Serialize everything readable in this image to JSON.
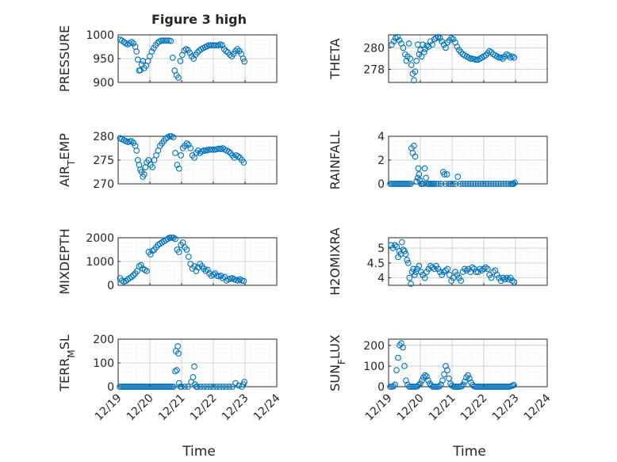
{
  "figure": {
    "title": "Figure 3 high",
    "marker_color": "#0072BD",
    "grid_color": "#C8C8C8",
    "axis_color": "#262626"
  },
  "chart_data": [
    {
      "type": "scatter",
      "ylabel": "PRESSURE",
      "ylim": [
        900,
        1000
      ],
      "yticks": [
        900,
        950,
        1000
      ],
      "xlim": [
        0,
        5
      ],
      "grid": true,
      "x": [
        0.07,
        0.12,
        0.18,
        0.24,
        0.3,
        0.36,
        0.42,
        0.48,
        0.54,
        0.58,
        0.62,
        0.66,
        0.7,
        0.74,
        0.78,
        0.82,
        0.88,
        0.94,
        1.0,
        1.06,
        1.12,
        1.18,
        1.24,
        1.3,
        1.36,
        1.42,
        1.48,
        1.54,
        1.6,
        1.66,
        1.72,
        1.78,
        1.84,
        1.9,
        1.96,
        2.02,
        2.08,
        2.14,
        2.2,
        2.26,
        2.32,
        2.38,
        2.44,
        2.5,
        2.56,
        2.62,
        2.68,
        2.74,
        2.8,
        2.86,
        2.92,
        2.98,
        3.04,
        3.1,
        3.16,
        3.22,
        3.28,
        3.34,
        3.4,
        3.46,
        3.52,
        3.58,
        3.64,
        3.7,
        3.76,
        3.82,
        3.88,
        3.94,
        3.98
      ],
      "values": [
        990,
        988,
        985,
        982,
        980,
        982,
        985,
        982,
        975,
        965,
        948,
        925,
        926,
        938,
        945,
        930,
        935,
        945,
        955,
        965,
        972,
        978,
        983,
        986,
        988,
        988,
        988,
        988,
        988,
        987,
        952,
        925,
        915,
        910,
        945,
        958,
        967,
        970,
        968,
        962,
        955,
        950,
        958,
        963,
        967,
        970,
        972,
        974,
        976,
        978,
        978,
        978,
        978,
        978,
        978,
        980,
        978,
        970,
        966,
        963,
        958,
        955,
        960,
        966,
        970,
        966,
        960,
        950,
        944
      ]
    },
    {
      "type": "scatter",
      "ylabel": "THETA",
      "ylim": [
        276.8,
        281.2
      ],
      "yticks": [
        278,
        280
      ],
      "xlim": [
        0,
        5
      ],
      "grid": true,
      "x": [
        0.1,
        0.16,
        0.22,
        0.28,
        0.34,
        0.4,
        0.46,
        0.52,
        0.56,
        0.6,
        0.64,
        0.68,
        0.72,
        0.76,
        0.8,
        0.84,
        0.88,
        0.92,
        0.96,
        1.0,
        1.04,
        1.08,
        1.12,
        1.16,
        1.2,
        1.26,
        1.32,
        1.38,
        1.44,
        1.5,
        1.56,
        1.62,
        1.68,
        1.74,
        1.8,
        1.86,
        1.92,
        1.98,
        2.04,
        2.1,
        2.16,
        2.22,
        2.28,
        2.34,
        2.4,
        2.46,
        2.52,
        2.58,
        2.64,
        2.7,
        2.76,
        2.82,
        2.88,
        2.94,
        3.0,
        3.06,
        3.12,
        3.18,
        3.24,
        3.3,
        3.36,
        3.42,
        3.48,
        3.54,
        3.6,
        3.66,
        3.72,
        3.78,
        3.84,
        3.9,
        3.96
      ],
      "values": [
        280.3,
        280.6,
        280.9,
        281.0,
        280.7,
        280.4,
        280.0,
        279.4,
        278.8,
        279.2,
        280.4,
        279.0,
        278.4,
        277.6,
        277.0,
        277.8,
        278.8,
        280.3,
        279.4,
        279.8,
        279.2,
        280.3,
        279.6,
        279.9,
        280.2,
        280.1,
        280.6,
        280.3,
        280.8,
        280.9,
        281.0,
        280.9,
        280.6,
        280.3,
        280.0,
        280.5,
        280.7,
        280.9,
        280.8,
        280.5,
        280.1,
        279.8,
        279.6,
        279.4,
        279.3,
        279.2,
        279.1,
        279.0,
        279.0,
        278.95,
        278.9,
        278.9,
        279.0,
        279.1,
        279.2,
        279.3,
        279.5,
        279.7,
        279.6,
        279.4,
        279.3,
        279.2,
        279.1,
        279.1,
        279.0,
        279.2,
        279.4,
        279.3,
        279.1,
        279.2,
        279.1
      ]
    },
    {
      "type": "scatter",
      "ylabel": "AIR_TEMP",
      "ylim": [
        270,
        280
      ],
      "yticks": [
        270,
        275,
        280
      ],
      "xlim": [
        0,
        5
      ],
      "grid": true,
      "x": [
        0.06,
        0.12,
        0.18,
        0.24,
        0.3,
        0.36,
        0.42,
        0.48,
        0.54,
        0.58,
        0.62,
        0.66,
        0.7,
        0.74,
        0.78,
        0.82,
        0.86,
        0.9,
        0.96,
        1.02,
        1.08,
        1.14,
        1.2,
        1.26,
        1.32,
        1.38,
        1.44,
        1.5,
        1.56,
        1.62,
        1.68,
        1.74,
        1.8,
        1.86,
        1.92,
        1.98,
        2.04,
        2.1,
        2.16,
        2.22,
        2.28,
        2.34,
        2.4,
        2.46,
        2.52,
        2.58,
        2.64,
        2.7,
        2.76,
        2.82,
        2.88,
        2.94,
        3.0,
        3.06,
        3.12,
        3.18,
        3.24,
        3.3,
        3.36,
        3.42,
        3.48,
        3.54,
        3.6,
        3.66,
        3.72,
        3.78,
        3.84,
        3.9,
        3.96
      ],
      "values": [
        279.6,
        279.4,
        279.2,
        279.0,
        278.8,
        278.9,
        279.0,
        278.6,
        278.0,
        277.0,
        275.0,
        274.0,
        273.0,
        272.5,
        271.5,
        272.0,
        273.5,
        274.5,
        275.0,
        274.0,
        273.5,
        275.0,
        276.0,
        277.0,
        278.0,
        278.5,
        279.0,
        279.5,
        279.8,
        280.0,
        280.0,
        279.8,
        276.5,
        274.0,
        273.2,
        276.0,
        277.5,
        278.0,
        278.5,
        278.2,
        277.5,
        276.0,
        275.5,
        276.5,
        277.0,
        276.5,
        276.8,
        277.0,
        277.0,
        277.1,
        277.2,
        277.2,
        277.2,
        277.2,
        277.3,
        277.4,
        277.3,
        277.5,
        277.2,
        277.0,
        276.8,
        276.5,
        276.0,
        275.5,
        276.0,
        275.8,
        275.5,
        275.0,
        274.5
      ]
    },
    {
      "type": "scatter",
      "ylabel": "RAINFALL",
      "ylim": [
        0,
        4
      ],
      "yticks": [
        0,
        2,
        4
      ],
      "xlim": [
        0,
        5
      ],
      "grid": true,
      "x": [
        0.05,
        0.1,
        0.15,
        0.2,
        0.25,
        0.3,
        0.35,
        0.4,
        0.45,
        0.5,
        0.55,
        0.6,
        0.65,
        0.7,
        0.72,
        0.76,
        0.8,
        0.84,
        0.88,
        0.92,
        0.94,
        0.96,
        0.98,
        1.02,
        1.06,
        1.1,
        1.14,
        1.18,
        1.22,
        1.26,
        1.3,
        1.34,
        1.38,
        1.42,
        1.5,
        1.58,
        1.66,
        1.72,
        1.76,
        1.8,
        1.84,
        1.9,
        1.96,
        2.02,
        2.1,
        2.18,
        2.26,
        2.34,
        2.42,
        2.5,
        2.58,
        2.66,
        2.74,
        2.82,
        2.9,
        2.98,
        3.06,
        3.14,
        3.22,
        3.3,
        3.38,
        3.46,
        3.54,
        3.62,
        3.7,
        3.78,
        3.86,
        3.9,
        3.94,
        3.98
      ],
      "values": [
        0,
        0,
        0,
        0,
        0,
        0,
        0,
        0,
        0,
        0,
        0,
        0,
        0,
        0,
        3.0,
        2.6,
        3.2,
        2.3,
        0.2,
        0.5,
        1.3,
        0.8,
        0.3,
        0,
        0,
        0,
        1.3,
        0.5,
        0,
        0,
        0,
        0,
        0,
        0,
        0,
        0,
        0,
        1.0,
        0.8,
        0,
        0.8,
        0,
        0,
        0,
        0,
        0.6,
        0,
        0,
        0,
        0,
        0,
        0,
        0,
        0,
        0,
        0,
        0,
        0,
        0,
        0,
        0,
        0,
        0,
        0,
        0,
        0,
        0,
        0,
        0,
        0.1
      ]
    },
    {
      "type": "scatter",
      "ylabel": "MIXDEPTH",
      "ylim": [
        0,
        2000
      ],
      "yticks": [
        0,
        1000,
        2000
      ],
      "xlim": [
        0,
        5
      ],
      "grid": true,
      "x": [
        0.06,
        0.12,
        0.18,
        0.24,
        0.3,
        0.36,
        0.42,
        0.48,
        0.54,
        0.6,
        0.66,
        0.72,
        0.78,
        0.84,
        0.9,
        0.96,
        1.02,
        1.08,
        1.14,
        1.2,
        1.26,
        1.32,
        1.38,
        1.44,
        1.5,
        1.56,
        1.62,
        1.68,
        1.74,
        1.8,
        1.86,
        1.92,
        1.98,
        2.04,
        2.1,
        2.16,
        2.22,
        2.28,
        2.34,
        2.4,
        2.46,
        2.52,
        2.58,
        2.64,
        2.7,
        2.76,
        2.82,
        2.88,
        2.94,
        3.0,
        3.06,
        3.12,
        3.18,
        3.24,
        3.3,
        3.36,
        3.42,
        3.48,
        3.54,
        3.6,
        3.66,
        3.72,
        3.78,
        3.84,
        3.9,
        3.96
      ],
      "values": [
        300,
        200,
        150,
        180,
        250,
        300,
        350,
        420,
        500,
        600,
        800,
        850,
        700,
        650,
        600,
        1400,
        1300,
        1450,
        1500,
        1600,
        1700,
        1750,
        1800,
        1850,
        1900,
        1950,
        2000,
        2000,
        2000,
        1950,
        1500,
        1400,
        1700,
        1800,
        1600,
        1500,
        1200,
        900,
        700,
        800,
        600,
        750,
        900,
        800,
        700,
        600,
        650,
        500,
        400,
        450,
        500,
        400,
        380,
        400,
        300,
        350,
        200,
        250,
        280,
        300,
        250,
        220,
        200,
        250,
        200,
        180
      ]
    },
    {
      "type": "scatter",
      "ylabel": "H2OMIXRA",
      "ylim": [
        3.75,
        5.35
      ],
      "yticks": [
        4,
        4.5,
        5
      ],
      "xlim": [
        0,
        5
      ],
      "grid": true,
      "x": [
        0.08,
        0.14,
        0.2,
        0.26,
        0.3,
        0.34,
        0.38,
        0.42,
        0.46,
        0.5,
        0.54,
        0.58,
        0.62,
        0.66,
        0.7,
        0.74,
        0.78,
        0.82,
        0.86,
        0.9,
        0.96,
        1.02,
        1.08,
        1.14,
        1.2,
        1.26,
        1.32,
        1.38,
        1.44,
        1.5,
        1.56,
        1.62,
        1.68,
        1.74,
        1.8,
        1.86,
        1.92,
        1.98,
        2.04,
        2.1,
        2.16,
        2.22,
        2.28,
        2.34,
        2.4,
        2.46,
        2.52,
        2.58,
        2.64,
        2.7,
        2.76,
        2.82,
        2.88,
        2.94,
        3.0,
        3.06,
        3.12,
        3.18,
        3.24,
        3.3,
        3.36,
        3.42,
        3.48,
        3.54,
        3.6,
        3.66,
        3.72,
        3.78,
        3.84,
        3.9,
        3.96
      ],
      "values": [
        5.1,
        5.0,
        5.1,
        5.05,
        4.7,
        4.9,
        4.8,
        5.2,
        4.95,
        4.9,
        4.8,
        4.6,
        4.5,
        4.0,
        3.8,
        4.2,
        4.3,
        4.1,
        4.2,
        4.3,
        4.4,
        4.2,
        4.1,
        4.0,
        4.2,
        4.3,
        4.4,
        4.35,
        4.3,
        4.4,
        4.3,
        4.2,
        4.1,
        4.2,
        4.25,
        4.3,
        4.1,
        3.9,
        4.0,
        4.2,
        4.1,
        4.0,
        3.9,
        4.2,
        4.3,
        4.25,
        4.3,
        4.2,
        4.35,
        4.3,
        4.2,
        4.2,
        4.3,
        4.25,
        4.3,
        4.35,
        4.3,
        4.1,
        4.0,
        4.2,
        4.25,
        4.1,
        4.0,
        3.9,
        4.0,
        3.95,
        4.0,
        3.95,
        4.0,
        3.9,
        3.85
      ]
    },
    {
      "type": "scatter",
      "ylabel": "TERR_MSL",
      "ylim": [
        0,
        200
      ],
      "yticks": [
        0,
        100,
        200
      ],
      "xlim": [
        0,
        5
      ],
      "grid": true,
      "x": [
        0.05,
        0.1,
        0.15,
        0.2,
        0.25,
        0.3,
        0.35,
        0.4,
        0.45,
        0.5,
        0.55,
        0.6,
        0.65,
        0.7,
        0.75,
        0.8,
        0.85,
        0.9,
        0.95,
        1.0,
        1.05,
        1.1,
        1.15,
        1.2,
        1.25,
        1.3,
        1.35,
        1.4,
        1.45,
        1.5,
        1.55,
        1.6,
        1.65,
        1.7,
        1.75,
        1.8,
        1.82,
        1.85,
        1.88,
        1.9,
        1.92,
        1.96,
        2.0,
        2.1,
        2.2,
        2.3,
        2.36,
        2.4,
        2.42,
        2.46,
        2.5,
        2.6,
        2.7,
        2.8,
        2.9,
        3.0,
        3.1,
        3.2,
        3.3,
        3.4,
        3.5,
        3.6,
        3.7,
        3.8,
        3.9,
        3.95,
        3.98
      ],
      "values": [
        0,
        0,
        0,
        0,
        0,
        0,
        0,
        0,
        0,
        0,
        0,
        0,
        0,
        0,
        0,
        0,
        0,
        0,
        0,
        0,
        0,
        0,
        0,
        0,
        0,
        0,
        0,
        0,
        0,
        0,
        0,
        0,
        0,
        0,
        0,
        65,
        150,
        70,
        170,
        140,
        15,
        0,
        0,
        0,
        0,
        20,
        40,
        85,
        10,
        0,
        0,
        0,
        0,
        0,
        0,
        0,
        0,
        0,
        0,
        0,
        0,
        0,
        15,
        5,
        0,
        10,
        20
      ]
    },
    {
      "type": "scatter",
      "ylabel": "SUN_FLUX",
      "ylim": [
        0,
        230
      ],
      "yticks": [
        0,
        100,
        200
      ],
      "xlim": [
        0,
        5
      ],
      "grid": true,
      "x": [
        0.05,
        0.1,
        0.15,
        0.2,
        0.25,
        0.3,
        0.35,
        0.4,
        0.45,
        0.5,
        0.55,
        0.6,
        0.65,
        0.7,
        0.75,
        0.8,
        0.85,
        0.9,
        0.95,
        1.0,
        1.05,
        1.1,
        1.15,
        1.2,
        1.25,
        1.3,
        1.35,
        1.4,
        1.45,
        1.5,
        1.55,
        1.6,
        1.65,
        1.7,
        1.75,
        1.8,
        1.85,
        1.9,
        1.95,
        2.0,
        2.05,
        2.1,
        2.15,
        2.2,
        2.25,
        2.3,
        2.35,
        2.4,
        2.45,
        2.5,
        2.55,
        2.6,
        2.65,
        2.7,
        2.75,
        2.8,
        2.85,
        2.9,
        2.95,
        3.0,
        3.05,
        3.1,
        3.15,
        3.2,
        3.25,
        3.3,
        3.35,
        3.4,
        3.45,
        3.5,
        3.55,
        3.6,
        3.65,
        3.7,
        3.75,
        3.8,
        3.85,
        3.9,
        3.95
      ],
      "values": [
        0,
        0,
        2,
        10,
        80,
        140,
        200,
        210,
        190,
        100,
        30,
        10,
        0,
        0,
        0,
        0,
        0,
        2,
        8,
        15,
        30,
        45,
        55,
        50,
        30,
        15,
        5,
        0,
        0,
        0,
        0,
        2,
        10,
        30,
        60,
        100,
        80,
        40,
        15,
        5,
        0,
        0,
        0,
        0,
        0,
        2,
        10,
        25,
        45,
        55,
        40,
        20,
        8,
        2,
        0,
        0,
        0,
        0,
        0,
        0,
        0,
        0,
        0,
        0,
        0,
        0,
        0,
        0,
        0,
        0,
        0,
        0,
        0,
        0,
        0,
        0,
        2,
        5,
        8
      ]
    }
  ],
  "x_axis": {
    "tick_labels": [
      "12/19",
      "12/20",
      "12/21",
      "12/22",
      "12/23",
      "12/24"
    ],
    "xlabel": "Time"
  }
}
